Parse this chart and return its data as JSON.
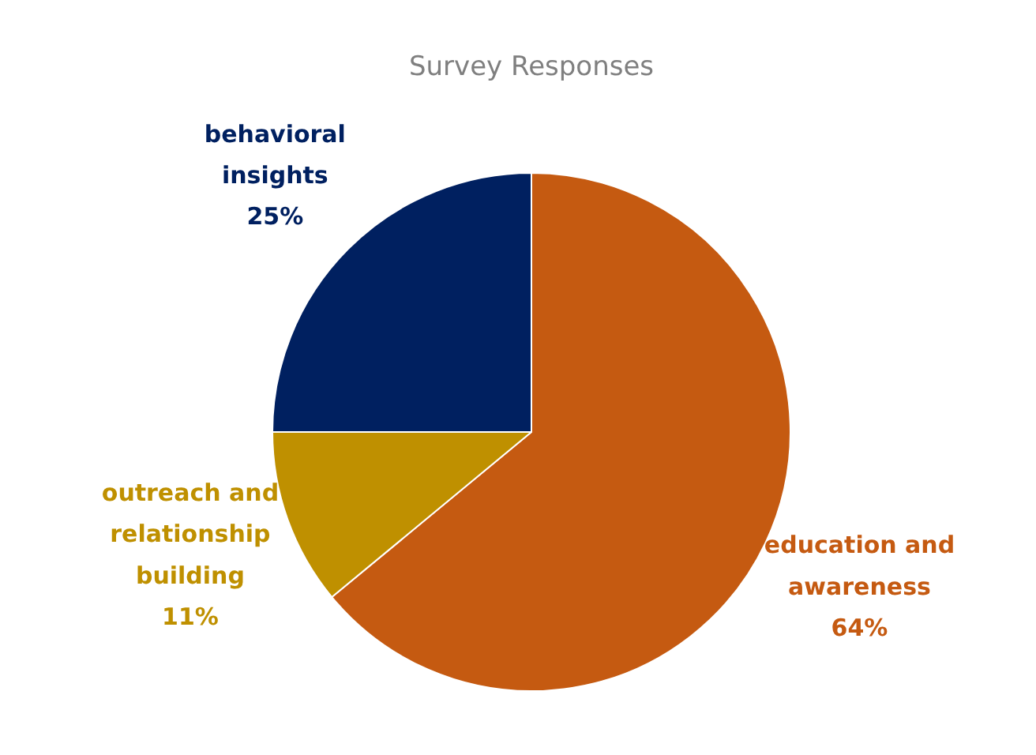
{
  "chart_data": {
    "type": "pie",
    "title": "Survey Responses",
    "categories": [
      "education and awareness",
      "outreach and relationship building",
      "behavioral insights"
    ],
    "values": [
      64,
      11,
      25
    ],
    "value_labels": [
      "64%",
      "11%",
      "25%"
    ],
    "colors": [
      "#c55a11",
      "#bf9000",
      "#002060"
    ]
  }
}
